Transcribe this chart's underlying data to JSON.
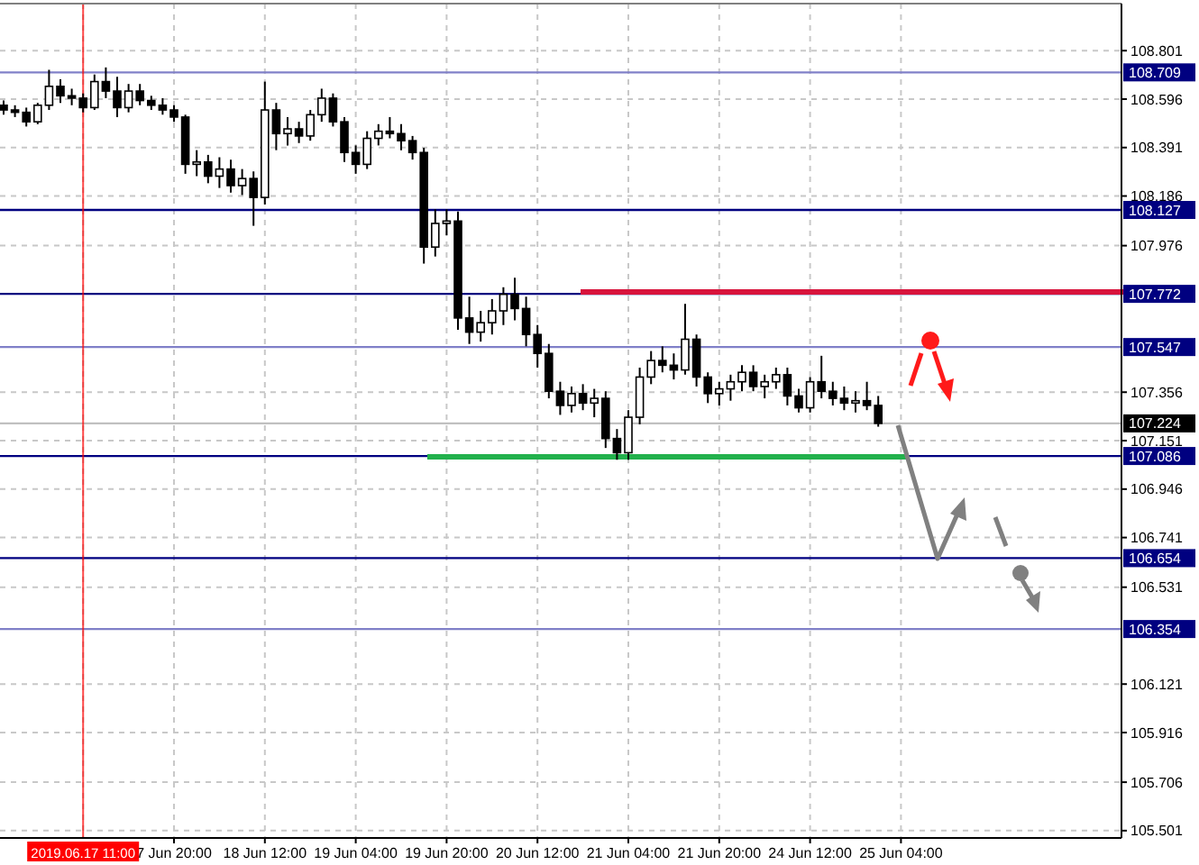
{
  "chart_data": {
    "type": "candlestick",
    "color": "#000000",
    "grid": true,
    "categories": [
      null,
      null,
      null,
      null,
      null,
      null,
      null,
      "2019.06.17 11:00",
      null,
      null,
      null,
      null,
      null,
      null,
      null,
      "7 Jun 20:00",
      null,
      null,
      null,
      null,
      null,
      null,
      null,
      "18 Jun 12:00",
      null,
      null,
      null,
      null,
      null,
      null,
      null,
      "19 Jun 04:00",
      null,
      null,
      null,
      null,
      null,
      null,
      null,
      "19 Jun 20:00",
      null,
      null,
      null,
      null,
      null,
      null,
      null,
      "20 Jun 12:00",
      null,
      null,
      null,
      null,
      null,
      null,
      null,
      "21 Jun 04:00",
      null,
      null,
      null,
      null,
      null,
      null,
      null,
      "21 Jun 20:00",
      null,
      null,
      null,
      null,
      null,
      null,
      null,
      "24 Jun 12:00",
      null,
      null,
      null,
      null,
      null,
      null,
      null,
      "25 Jun 04:00",
      null,
      null,
      null,
      null,
      null,
      null,
      null,
      null,
      null,
      null,
      null,
      null,
      null,
      null,
      null,
      null,
      null,
      null,
      null
    ],
    "ohlc": [
      [
        108.57,
        108.59,
        108.53,
        108.55
      ],
      [
        108.55,
        108.57,
        108.52,
        108.54
      ],
      [
        108.54,
        108.56,
        108.48,
        108.5
      ],
      [
        108.5,
        108.58,
        108.49,
        108.57
      ],
      [
        108.57,
        108.72,
        108.55,
        108.65
      ],
      [
        108.65,
        108.68,
        108.58,
        108.61
      ],
      [
        108.61,
        108.64,
        108.57,
        108.6
      ],
      [
        108.6,
        108.62,
        108.54,
        108.56
      ],
      [
        108.56,
        108.7,
        108.55,
        108.67
      ],
      [
        108.67,
        108.73,
        108.6,
        108.63
      ],
      [
        108.63,
        108.69,
        108.52,
        108.56
      ],
      [
        108.56,
        108.66,
        108.54,
        108.63
      ],
      [
        108.63,
        108.66,
        108.57,
        108.59
      ],
      [
        108.59,
        108.61,
        108.55,
        108.57
      ],
      [
        108.57,
        108.6,
        108.53,
        108.55
      ],
      [
        108.55,
        108.57,
        108.5,
        108.52
      ],
      [
        108.52,
        108.53,
        108.28,
        108.32
      ],
      [
        108.32,
        108.38,
        108.27,
        108.33
      ],
      [
        108.33,
        108.36,
        108.24,
        108.27
      ],
      [
        108.27,
        108.35,
        108.22,
        108.3
      ],
      [
        108.3,
        108.34,
        108.2,
        108.23
      ],
      [
        108.23,
        108.3,
        108.19,
        108.26
      ],
      [
        108.26,
        108.29,
        108.06,
        108.18
      ],
      [
        108.18,
        108.67,
        108.15,
        108.55
      ],
      [
        108.55,
        108.58,
        108.38,
        108.45
      ],
      [
        108.45,
        108.52,
        108.4,
        108.47
      ],
      [
        108.47,
        108.5,
        108.41,
        108.44
      ],
      [
        108.44,
        108.55,
        108.42,
        108.53
      ],
      [
        108.53,
        108.64,
        108.5,
        108.6
      ],
      [
        108.6,
        108.62,
        108.48,
        108.5
      ],
      [
        108.5,
        108.52,
        108.33,
        108.37
      ],
      [
        108.37,
        108.4,
        108.28,
        108.32
      ],
      [
        108.32,
        108.46,
        108.3,
        108.43
      ],
      [
        108.43,
        108.49,
        108.4,
        108.46
      ],
      [
        108.46,
        108.52,
        108.43,
        108.45
      ],
      [
        108.45,
        108.49,
        108.38,
        108.42
      ],
      [
        108.42,
        108.44,
        108.34,
        108.37
      ],
      [
        108.37,
        108.39,
        107.9,
        107.97
      ],
      [
        107.97,
        108.13,
        107.93,
        108.07
      ],
      [
        108.07,
        108.13,
        108.02,
        108.08
      ],
      [
        108.08,
        108.12,
        107.62,
        107.67
      ],
      [
        107.67,
        107.76,
        107.56,
        107.61
      ],
      [
        107.61,
        107.7,
        107.57,
        107.65
      ],
      [
        107.65,
        107.75,
        107.6,
        107.7
      ],
      [
        107.7,
        107.8,
        107.64,
        107.77
      ],
      [
        107.77,
        107.84,
        107.66,
        107.71
      ],
      [
        107.71,
        107.76,
        107.55,
        107.6
      ],
      [
        107.6,
        107.64,
        107.46,
        107.52
      ],
      [
        107.52,
        107.56,
        107.33,
        107.36
      ],
      [
        107.36,
        107.4,
        107.26,
        107.3
      ],
      [
        107.3,
        107.38,
        107.27,
        107.35
      ],
      [
        107.35,
        107.39,
        107.28,
        107.31
      ],
      [
        107.31,
        107.37,
        107.25,
        107.33
      ],
      [
        107.33,
        107.36,
        107.12,
        107.16
      ],
      [
        107.16,
        107.2,
        107.07,
        107.1
      ],
      [
        107.1,
        107.28,
        107.07,
        107.25
      ],
      [
        107.25,
        107.46,
        107.22,
        107.42
      ],
      [
        107.42,
        107.53,
        107.39,
        107.49
      ],
      [
        107.49,
        107.55,
        107.44,
        107.47
      ],
      [
        107.47,
        107.52,
        107.41,
        107.45
      ],
      [
        107.45,
        107.73,
        107.43,
        107.58
      ],
      [
        107.58,
        107.6,
        107.38,
        107.42
      ],
      [
        107.42,
        107.44,
        107.31,
        107.35
      ],
      [
        107.35,
        107.4,
        107.3,
        107.37
      ],
      [
        107.37,
        107.43,
        107.32,
        107.4
      ],
      [
        107.4,
        107.47,
        107.36,
        107.44
      ],
      [
        107.44,
        107.47,
        107.36,
        107.38
      ],
      [
        107.38,
        107.43,
        107.33,
        107.4
      ],
      [
        107.4,
        107.46,
        107.37,
        107.43
      ],
      [
        107.43,
        107.46,
        107.3,
        107.34
      ],
      [
        107.34,
        107.37,
        107.27,
        107.29
      ],
      [
        107.29,
        107.42,
        107.27,
        107.4
      ],
      [
        107.4,
        107.51,
        107.33,
        107.36
      ],
      [
        107.36,
        107.4,
        107.3,
        107.33
      ],
      [
        107.33,
        107.38,
        107.28,
        107.31
      ],
      [
        107.31,
        107.36,
        107.27,
        107.32
      ],
      [
        107.32,
        107.4,
        107.28,
        107.3
      ],
      [
        107.3,
        107.34,
        107.21,
        107.224
      ],
      null,
      null,
      null,
      null,
      null,
      null,
      null,
      null,
      null,
      null,
      null,
      null,
      null,
      null,
      null,
      null,
      null,
      null,
      null,
      null,
      null
    ],
    "ylim": [
      105.47,
      109.0
    ],
    "yticks": [
      108.801,
      108.596,
      108.391,
      108.186,
      107.976,
      107.356,
      107.151,
      106.946,
      106.741,
      106.531,
      106.121,
      105.916,
      105.706,
      105.501
    ],
    "ref_lines": [
      {
        "axis": "x",
        "value": "2019.06.17 11:00",
        "color": "#ff0000"
      },
      {
        "axis": "y",
        "value": 108.709,
        "label": "108.709",
        "color": "#8080c8"
      },
      {
        "axis": "y",
        "value": 108.127,
        "label": "108.127",
        "color": "#000080"
      },
      {
        "axis": "y",
        "value": 107.772,
        "label": "107.772",
        "color": "#000080"
      },
      {
        "axis": "y",
        "value": 107.547,
        "label": "107.547",
        "color": "#8080c8"
      },
      {
        "axis": "y",
        "value": 107.224,
        "label": "107.224",
        "color": "#c0c0c0"
      },
      {
        "axis": "y",
        "value": 107.086,
        "label": "107.086",
        "color": "#000080"
      },
      {
        "axis": "y",
        "value": 106.654,
        "label": "106.654",
        "color": "#000080"
      },
      {
        "axis": "y",
        "value": 106.354,
        "label": "106.354",
        "color": "#8080c8"
      }
    ]
  }
}
